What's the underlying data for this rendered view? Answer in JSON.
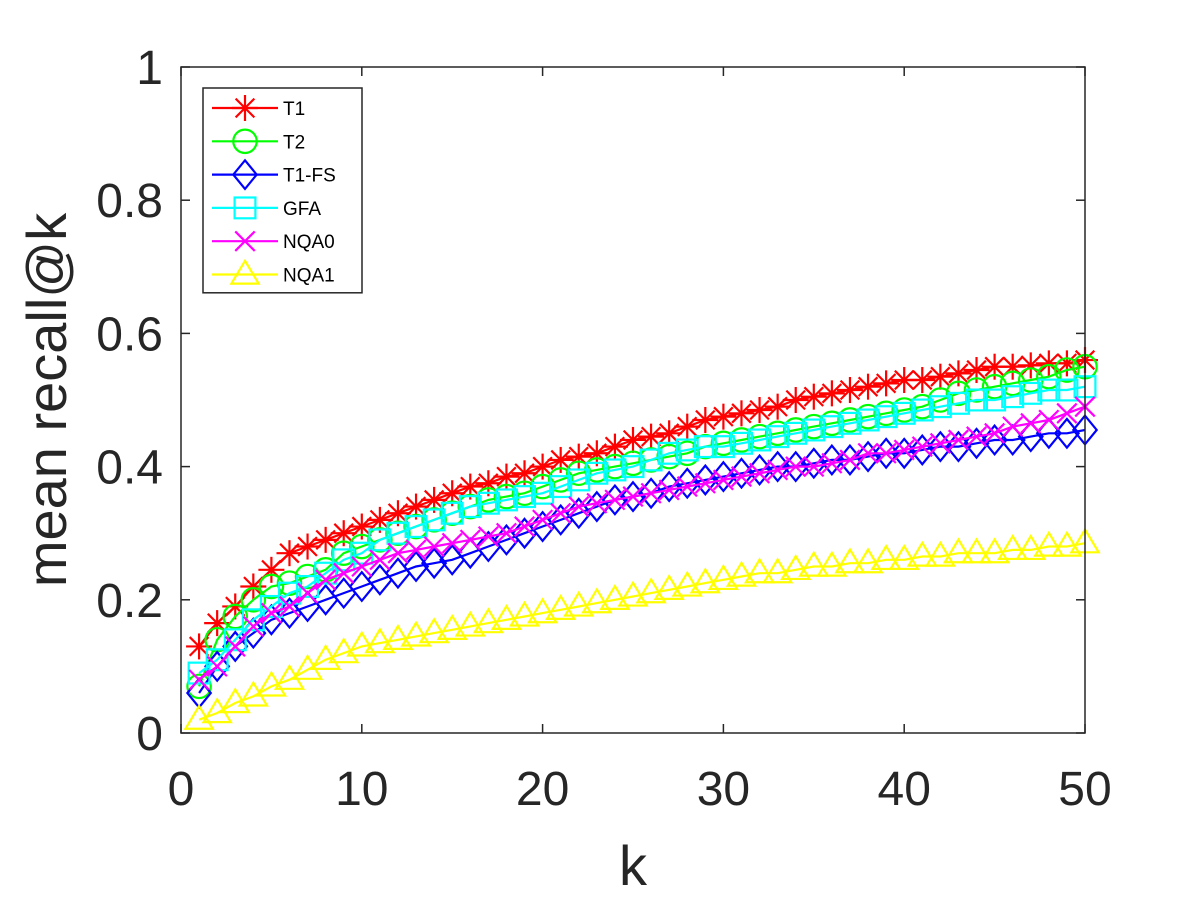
{
  "chart_data": {
    "type": "line",
    "title": "",
    "xlabel": "k",
    "ylabel": "mean recall@k",
    "xlim": [
      0,
      50
    ],
    "ylim": [
      0,
      1
    ],
    "xticks": [
      0,
      10,
      20,
      30,
      40,
      50
    ],
    "yticks": [
      0,
      0.2,
      0.4,
      0.6,
      0.8,
      1
    ],
    "xtick_labels": [
      "0",
      "10",
      "20",
      "30",
      "40",
      "50"
    ],
    "ytick_labels": [
      "0",
      "0.2",
      "0.4",
      "0.6",
      "0.8",
      "1"
    ],
    "grid": false,
    "legend_position": "top-left",
    "x": [
      1,
      2,
      3,
      4,
      5,
      6,
      7,
      8,
      9,
      10,
      11,
      12,
      13,
      14,
      15,
      16,
      17,
      18,
      19,
      20,
      21,
      22,
      23,
      24,
      25,
      26,
      27,
      28,
      29,
      30,
      31,
      32,
      33,
      34,
      35,
      36,
      37,
      38,
      39,
      40,
      41,
      42,
      43,
      44,
      45,
      46,
      47,
      48,
      49,
      50
    ],
    "series": [
      {
        "name": "T1",
        "color": "#ff0000",
        "marker": "star",
        "values": [
          0.13,
          0.165,
          0.19,
          0.22,
          0.245,
          0.27,
          0.28,
          0.29,
          0.3,
          0.31,
          0.32,
          0.33,
          0.34,
          0.35,
          0.36,
          0.37,
          0.375,
          0.385,
          0.39,
          0.4,
          0.41,
          0.415,
          0.42,
          0.43,
          0.44,
          0.445,
          0.45,
          0.46,
          0.47,
          0.475,
          0.48,
          0.485,
          0.49,
          0.5,
          0.505,
          0.51,
          0.515,
          0.52,
          0.525,
          0.53,
          0.53,
          0.535,
          0.54,
          0.545,
          0.55,
          0.55,
          0.552,
          0.555,
          0.555,
          0.56
        ]
      },
      {
        "name": "T2",
        "color": "#00ff00",
        "marker": "circle",
        "values": [
          0.07,
          0.14,
          0.175,
          0.2,
          0.22,
          0.225,
          0.235,
          0.245,
          0.27,
          0.28,
          0.29,
          0.3,
          0.31,
          0.32,
          0.33,
          0.34,
          0.35,
          0.355,
          0.36,
          0.37,
          0.38,
          0.39,
          0.395,
          0.4,
          0.405,
          0.41,
          0.415,
          0.42,
          0.43,
          0.435,
          0.44,
          0.445,
          0.45,
          0.455,
          0.46,
          0.465,
          0.47,
          0.475,
          0.48,
          0.485,
          0.49,
          0.5,
          0.51,
          0.515,
          0.52,
          0.525,
          0.53,
          0.535,
          0.545,
          0.55
        ]
      },
      {
        "name": "T1-FS",
        "color": "#0000ff",
        "marker": "diamond",
        "values": [
          0.06,
          0.1,
          0.13,
          0.15,
          0.17,
          0.18,
          0.19,
          0.2,
          0.21,
          0.22,
          0.23,
          0.24,
          0.25,
          0.255,
          0.26,
          0.27,
          0.28,
          0.29,
          0.3,
          0.31,
          0.32,
          0.33,
          0.34,
          0.35,
          0.355,
          0.36,
          0.37,
          0.375,
          0.38,
          0.385,
          0.39,
          0.395,
          0.4,
          0.4,
          0.405,
          0.41,
          0.41,
          0.415,
          0.42,
          0.42,
          0.425,
          0.43,
          0.43,
          0.435,
          0.44,
          0.44,
          0.445,
          0.45,
          0.45,
          0.455
        ]
      },
      {
        "name": "GFA",
        "color": "#00ffff",
        "marker": "square",
        "values": [
          0.09,
          0.11,
          0.14,
          0.17,
          0.19,
          0.21,
          0.22,
          0.24,
          0.26,
          0.27,
          0.29,
          0.3,
          0.31,
          0.32,
          0.33,
          0.34,
          0.345,
          0.35,
          0.355,
          0.36,
          0.37,
          0.38,
          0.39,
          0.395,
          0.4,
          0.41,
          0.42,
          0.425,
          0.43,
          0.43,
          0.435,
          0.44,
          0.445,
          0.45,
          0.455,
          0.46,
          0.465,
          0.47,
          0.475,
          0.48,
          0.485,
          0.49,
          0.495,
          0.5,
          0.5,
          0.505,
          0.51,
          0.515,
          0.515,
          0.52
        ]
      },
      {
        "name": "NQA0",
        "color": "#ff00ff",
        "marker": "x",
        "values": [
          0.08,
          0.1,
          0.13,
          0.16,
          0.18,
          0.19,
          0.21,
          0.23,
          0.24,
          0.25,
          0.26,
          0.27,
          0.275,
          0.28,
          0.285,
          0.29,
          0.295,
          0.3,
          0.31,
          0.32,
          0.33,
          0.34,
          0.345,
          0.35,
          0.355,
          0.36,
          0.365,
          0.37,
          0.375,
          0.38,
          0.385,
          0.39,
          0.395,
          0.4,
          0.4,
          0.405,
          0.41,
          0.42,
          0.42,
          0.425,
          0.43,
          0.435,
          0.44,
          0.445,
          0.45,
          0.46,
          0.465,
          0.47,
          0.48,
          0.49
        ]
      },
      {
        "name": "NQA1",
        "color": "#ffff00",
        "marker": "triangle",
        "values": [
          0.02,
          0.03,
          0.045,
          0.055,
          0.07,
          0.08,
          0.095,
          0.11,
          0.12,
          0.13,
          0.135,
          0.14,
          0.145,
          0.15,
          0.155,
          0.16,
          0.165,
          0.17,
          0.175,
          0.18,
          0.185,
          0.19,
          0.195,
          0.2,
          0.205,
          0.21,
          0.215,
          0.22,
          0.225,
          0.23,
          0.235,
          0.24,
          0.24,
          0.245,
          0.25,
          0.25,
          0.255,
          0.255,
          0.26,
          0.26,
          0.265,
          0.265,
          0.27,
          0.27,
          0.27,
          0.275,
          0.275,
          0.28,
          0.28,
          0.285
        ]
      }
    ]
  }
}
